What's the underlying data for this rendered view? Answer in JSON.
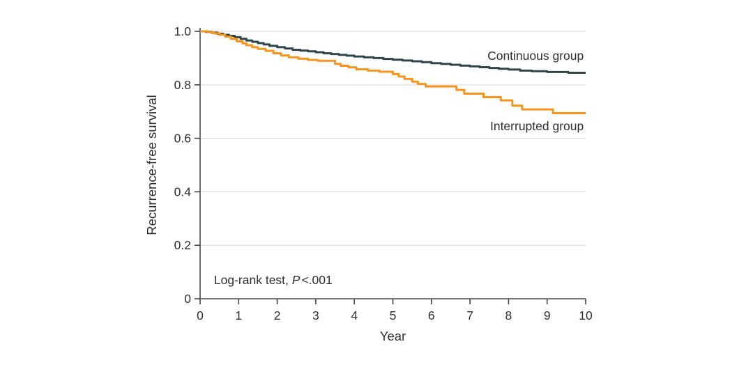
{
  "figure": {
    "background": "#ffffff",
    "text_color": "#2e2e2e",
    "axis_color": "#474747",
    "gridline_color": "#dcdcdc"
  },
  "chart_data": {
    "type": "line",
    "subtype": "kaplan-meier-step",
    "title": "",
    "xlabel": "Year",
    "ylabel": "Recurrence-free survival",
    "xlim": [
      0,
      10
    ],
    "ylim": [
      0,
      1.0
    ],
    "xticks": [
      0,
      1,
      2,
      3,
      4,
      5,
      6,
      7,
      8,
      9,
      10
    ],
    "xtick_labels": [
      "0",
      "1",
      "2",
      "3",
      "4",
      "5",
      "6",
      "7",
      "8",
      "9",
      "10"
    ],
    "yticks": [
      0,
      0.2,
      0.4,
      0.6,
      0.8,
      1.0
    ],
    "ytick_labels": [
      "0",
      "0.2",
      "0.4",
      "0.6",
      "0.8",
      "1.0"
    ],
    "grid": "horizontal",
    "gridline_values": [
      0.2,
      0.4,
      0.6,
      0.8,
      1.0
    ],
    "legend_position": "inline-curve-labels",
    "annotation": {
      "prefix": "Log-rank test, ",
      "italic": "P",
      "suffix": "<.001",
      "anchor_x": 0.36,
      "anchor_y": 0.055
    },
    "series": [
      {
        "name": "Continuous group",
        "color": "#30454a",
        "line_width": 3,
        "label_anchor_x": 9.95,
        "label_anchor_y": 0.909,
        "points": [
          [
            0,
            1.0
          ],
          [
            0.15,
            0.998
          ],
          [
            0.3,
            0.995
          ],
          [
            0.45,
            0.991
          ],
          [
            0.6,
            0.987
          ],
          [
            0.75,
            0.983
          ],
          [
            0.9,
            0.978
          ],
          [
            1.05,
            0.972
          ],
          [
            1.2,
            0.966
          ],
          [
            1.35,
            0.961
          ],
          [
            1.5,
            0.956
          ],
          [
            1.65,
            0.951
          ],
          [
            1.8,
            0.946
          ],
          [
            2.0,
            0.941
          ],
          [
            2.2,
            0.936
          ],
          [
            2.4,
            0.931
          ],
          [
            2.6,
            0.928
          ],
          [
            2.8,
            0.925
          ],
          [
            3.0,
            0.922
          ],
          [
            3.2,
            0.918
          ],
          [
            3.4,
            0.915
          ],
          [
            3.6,
            0.912
          ],
          [
            3.8,
            0.909
          ],
          [
            4.0,
            0.906
          ],
          [
            4.25,
            0.903
          ],
          [
            4.5,
            0.9
          ],
          [
            4.75,
            0.897
          ],
          [
            5.0,
            0.894
          ],
          [
            5.25,
            0.891
          ],
          [
            5.5,
            0.888
          ],
          [
            5.75,
            0.885
          ],
          [
            6.0,
            0.881
          ],
          [
            6.25,
            0.878
          ],
          [
            6.5,
            0.875
          ],
          [
            6.75,
            0.872
          ],
          [
            7.0,
            0.869
          ],
          [
            7.25,
            0.866
          ],
          [
            7.5,
            0.863
          ],
          [
            7.75,
            0.86
          ],
          [
            8.0,
            0.857
          ],
          [
            8.3,
            0.853
          ],
          [
            8.6,
            0.851
          ],
          [
            9.0,
            0.848
          ],
          [
            9.55,
            0.845
          ]
        ]
      },
      {
        "name": "Interrupted group",
        "color": "#f7941e",
        "line_width": 3,
        "label_anchor_x": 9.95,
        "label_anchor_y": 0.646,
        "points": [
          [
            0,
            1.0
          ],
          [
            0.2,
            0.997
          ],
          [
            0.35,
            0.993
          ],
          [
            0.5,
            0.987
          ],
          [
            0.65,
            0.98
          ],
          [
            0.8,
            0.972
          ],
          [
            0.95,
            0.963
          ],
          [
            1.1,
            0.955
          ],
          [
            1.2,
            0.948
          ],
          [
            1.35,
            0.941
          ],
          [
            1.5,
            0.934
          ],
          [
            1.7,
            0.927
          ],
          [
            1.9,
            0.918
          ],
          [
            2.1,
            0.91
          ],
          [
            2.3,
            0.903
          ],
          [
            2.55,
            0.898
          ],
          [
            2.8,
            0.893
          ],
          [
            3.05,
            0.89
          ],
          [
            3.5,
            0.878
          ],
          [
            3.65,
            0.871
          ],
          [
            3.85,
            0.865
          ],
          [
            4.05,
            0.858
          ],
          [
            4.35,
            0.853
          ],
          [
            4.65,
            0.849
          ],
          [
            5.0,
            0.84
          ],
          [
            5.15,
            0.831
          ],
          [
            5.3,
            0.822
          ],
          [
            5.5,
            0.812
          ],
          [
            5.65,
            0.803
          ],
          [
            5.85,
            0.794
          ],
          [
            6.65,
            0.781
          ],
          [
            6.85,
            0.767
          ],
          [
            7.35,
            0.754
          ],
          [
            7.8,
            0.742
          ],
          [
            8.1,
            0.722
          ],
          [
            8.35,
            0.708
          ],
          [
            9.15,
            0.694
          ]
        ]
      }
    ]
  }
}
